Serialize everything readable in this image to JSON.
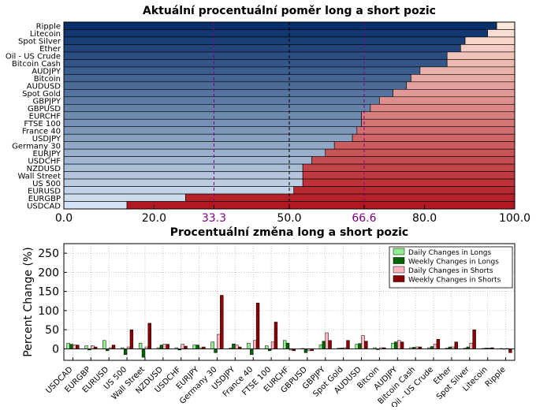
{
  "chart_data": [
    {
      "type": "bar",
      "orientation": "horizontal",
      "stacked": true,
      "title": "Aktuální procentuální poměr long a short pozic",
      "categories": [
        "Ripple",
        "Litecoin",
        "Spot Silver",
        "Ether",
        "Oil - US Crude",
        "Bitcoin Cash",
        "AUDJPY",
        "Bitcoin",
        "AUDUSD",
        "Spot Gold",
        "GBPJPY",
        "GBPUSD",
        "EURCHF",
        "FTSE 100",
        "France 40",
        "USDJPY",
        "Germany 30",
        "EURJPY",
        "USDCHF",
        "NZDUSD",
        "Wall Street",
        "US 500",
        "EURUSD",
        "EURGBP",
        "USDCAD"
      ],
      "long_values": [
        96,
        94,
        89,
        88,
        85,
        85,
        79,
        77,
        76,
        73,
        70,
        68,
        66,
        66,
        65,
        64,
        60,
        58,
        55,
        53,
        53,
        53,
        51,
        27,
        14
      ],
      "xlim": [
        0,
        100
      ],
      "xticks": [
        "0.0",
        "20.0",
        "33.3",
        "50.0",
        "66.6",
        "80.0",
        "100.0"
      ],
      "highlight_ticks": [
        "33.3",
        "66.6"
      ],
      "xlabel": "",
      "ylabel": "",
      "grid": true
    },
    {
      "type": "bar",
      "title": "Procentuální změna long a short pozic",
      "ylabel": "Percent Change (%)",
      "xlabel": "",
      "ylim": [
        -30,
        275
      ],
      "yticks": [
        "0",
        "50",
        "100",
        "150",
        "200",
        "250"
      ],
      "categories": [
        "USDCAD",
        "EURGBP",
        "EURUSD",
        "US 500",
        "Wall Street",
        "NZDUSD",
        "USDCHF",
        "EURJPY",
        "Germany 30",
        "USDJPY",
        "France 40",
        "FTSE 100",
        "EURCHF",
        "GBPUSD",
        "GBPJPY",
        "Spot Gold",
        "AUDUSD",
        "Bitcoin",
        "AUDJPY",
        "Bitcoin Cash",
        "Oil - US Crude",
        "Ether",
        "Spot Silver",
        "Litecoin",
        "Ripple"
      ],
      "legend": "top-right",
      "series": [
        {
          "name": "Daily Changes in Longs",
          "color": "#90ee90",
          "values": [
            15,
            8,
            22,
            3,
            15,
            3,
            3,
            10,
            18,
            2,
            15,
            8,
            22,
            1,
            10,
            2,
            12,
            3,
            15,
            3,
            3,
            2,
            2,
            1,
            1
          ]
        },
        {
          "name": "Weekly Changes in Longs",
          "color": "#006400",
          "values": [
            12,
            -3,
            -5,
            -15,
            -22,
            10,
            -3,
            10,
            -10,
            13,
            -15,
            -5,
            15,
            -10,
            20,
            2,
            14,
            -2,
            18,
            4,
            6,
            5,
            5,
            2,
            -1
          ]
        },
        {
          "name": "Daily Changes in Shorts",
          "color": "#ffb6c1",
          "values": [
            10,
            8,
            3,
            5,
            5,
            12,
            12,
            3,
            38,
            10,
            22,
            18,
            -3,
            -5,
            42,
            3,
            35,
            3,
            22,
            5,
            12,
            5,
            15,
            2,
            1
          ]
        },
        {
          "name": "Weekly Changes in Shorts",
          "color": "#8b0000",
          "values": [
            10,
            5,
            10,
            50,
            67,
            12,
            7,
            5,
            140,
            5,
            120,
            70,
            -5,
            -5,
            22,
            22,
            20,
            3,
            18,
            5,
            25,
            18,
            50,
            3,
            -10
          ]
        }
      ],
      "grid": true
    }
  ]
}
